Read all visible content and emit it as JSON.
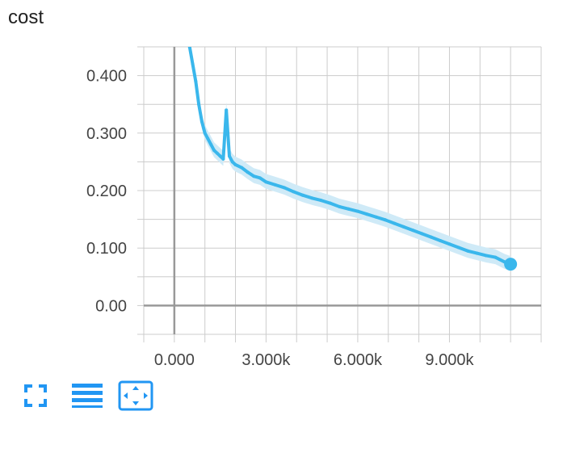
{
  "card": {
    "title": "cost"
  },
  "toolbar": {
    "buttons": [
      {
        "name": "fullscreen-button",
        "icon": "fullscreen-icon"
      },
      {
        "name": "data-download-button",
        "icon": "menu-lines-icon"
      },
      {
        "name": "fit-domain-button",
        "icon": "fit-domain-icon"
      }
    ]
  },
  "colors": {
    "line": "#3ab7ec",
    "band": "#cfeaf7",
    "grid": "#cccccc",
    "axis_zero": "#999999",
    "toolbar_icon": "#2196f3"
  },
  "chart_data": {
    "type": "line",
    "title": "cost",
    "xlabel": "",
    "ylabel": "",
    "xlim": [
      -1000,
      12000
    ],
    "ylim": [
      -0.05,
      0.45
    ],
    "x_ticks": [
      0,
      3000,
      6000,
      9000
    ],
    "x_tick_labels": [
      "0.000",
      "3.000k",
      "6.000k",
      "9.000k"
    ],
    "y_ticks": [
      0.0,
      0.1,
      0.2,
      0.3,
      0.4
    ],
    "y_tick_labels": [
      "0.00",
      "0.100",
      "0.200",
      "0.300",
      "0.400"
    ],
    "grid": true,
    "series": [
      {
        "x": [
          500,
          600,
          700,
          800,
          900,
          1000,
          1100,
          1200,
          1300,
          1400,
          1500,
          1600,
          1700,
          1800,
          1900,
          2000,
          2200,
          2400,
          2600,
          2800,
          3000,
          3300,
          3600,
          3900,
          4200,
          4500,
          4800,
          5100,
          5400,
          5700,
          6000,
          6300,
          6600,
          6900,
          7200,
          7500,
          7800,
          8100,
          8400,
          8700,
          9000,
          9300,
          9600,
          9900,
          10200,
          10500,
          10800,
          11000
        ],
        "values": [
          0.45,
          0.42,
          0.39,
          0.35,
          0.32,
          0.3,
          0.29,
          0.28,
          0.27,
          0.265,
          0.26,
          0.255,
          0.34,
          0.26,
          0.25,
          0.245,
          0.24,
          0.232,
          0.225,
          0.222,
          0.215,
          0.21,
          0.205,
          0.198,
          0.192,
          0.187,
          0.183,
          0.178,
          0.172,
          0.168,
          0.164,
          0.159,
          0.154,
          0.149,
          0.143,
          0.137,
          0.131,
          0.125,
          0.119,
          0.113,
          0.107,
          0.101,
          0.095,
          0.091,
          0.087,
          0.084,
          0.076,
          0.072
        ]
      }
    ]
  }
}
